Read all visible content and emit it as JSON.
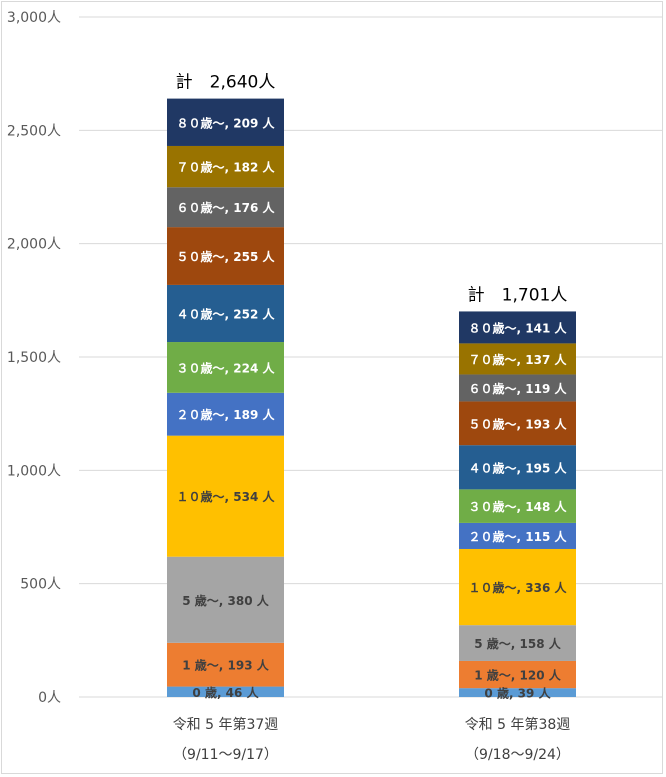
{
  "chart_data": {
    "type": "bar",
    "stacked": true,
    "title": "",
    "xlabel": "",
    "ylabel": "",
    "ylim": [
      0,
      3000
    ],
    "y_ticks": [
      0,
      500,
      1000,
      1500,
      2000,
      2500,
      3000
    ],
    "y_tick_unit": "人",
    "grid": true,
    "legend": "none",
    "categories": [
      {
        "line1": "令和 5 年第37週",
        "line2": "（9/11〜9/17）"
      },
      {
        "line1": "令和 5 年第38週",
        "line2": "（9/18〜9/24）"
      }
    ],
    "totals": [
      {
        "label": "計",
        "value": "2,640人"
      },
      {
        "label": "計",
        "value": "1,701人"
      }
    ],
    "series": [
      {
        "name": "0歳",
        "display": "0 歳",
        "color": "#5b9bd5",
        "text_color": "#404040",
        "values": [
          46,
          39
        ]
      },
      {
        "name": "1歳〜",
        "display": "1 歳〜",
        "color": "#ed7d31",
        "text_color": "#404040",
        "values": [
          193,
          120
        ]
      },
      {
        "name": "5歳〜",
        "display": "5 歳〜",
        "color": "#a5a5a5",
        "text_color": "#404040",
        "values": [
          380,
          158
        ]
      },
      {
        "name": "10歳〜",
        "display": "１０歳〜",
        "color": "#ffc000",
        "text_color": "#404040",
        "values": [
          534,
          336
        ]
      },
      {
        "name": "20歳〜",
        "display": "２０歳〜",
        "color": "#4472c4",
        "text_color": "#ffffff",
        "values": [
          189,
          115
        ]
      },
      {
        "name": "30歳〜",
        "display": "３０歳〜",
        "color": "#70ad47",
        "text_color": "#ffffff",
        "values": [
          224,
          148
        ]
      },
      {
        "name": "40歳〜",
        "display": "４０歳〜",
        "color": "#255e91",
        "text_color": "#ffffff",
        "values": [
          252,
          195
        ]
      },
      {
        "name": "50歳〜",
        "display": "５０歳〜",
        "color": "#9e480e",
        "text_color": "#ffffff",
        "values": [
          255,
          193
        ]
      },
      {
        "name": "60歳〜",
        "display": "６０歳〜",
        "color": "#636363",
        "text_color": "#ffffff",
        "values": [
          176,
          119
        ]
      },
      {
        "name": "70歳〜",
        "display": "７０歳〜",
        "color": "#997300",
        "text_color": "#ffffff",
        "values": [
          182,
          137
        ]
      },
      {
        "name": "80歳〜",
        "display": "８０歳〜",
        "color": "#203864",
        "text_color": "#ffffff",
        "values": [
          209,
          141
        ]
      }
    ]
  }
}
